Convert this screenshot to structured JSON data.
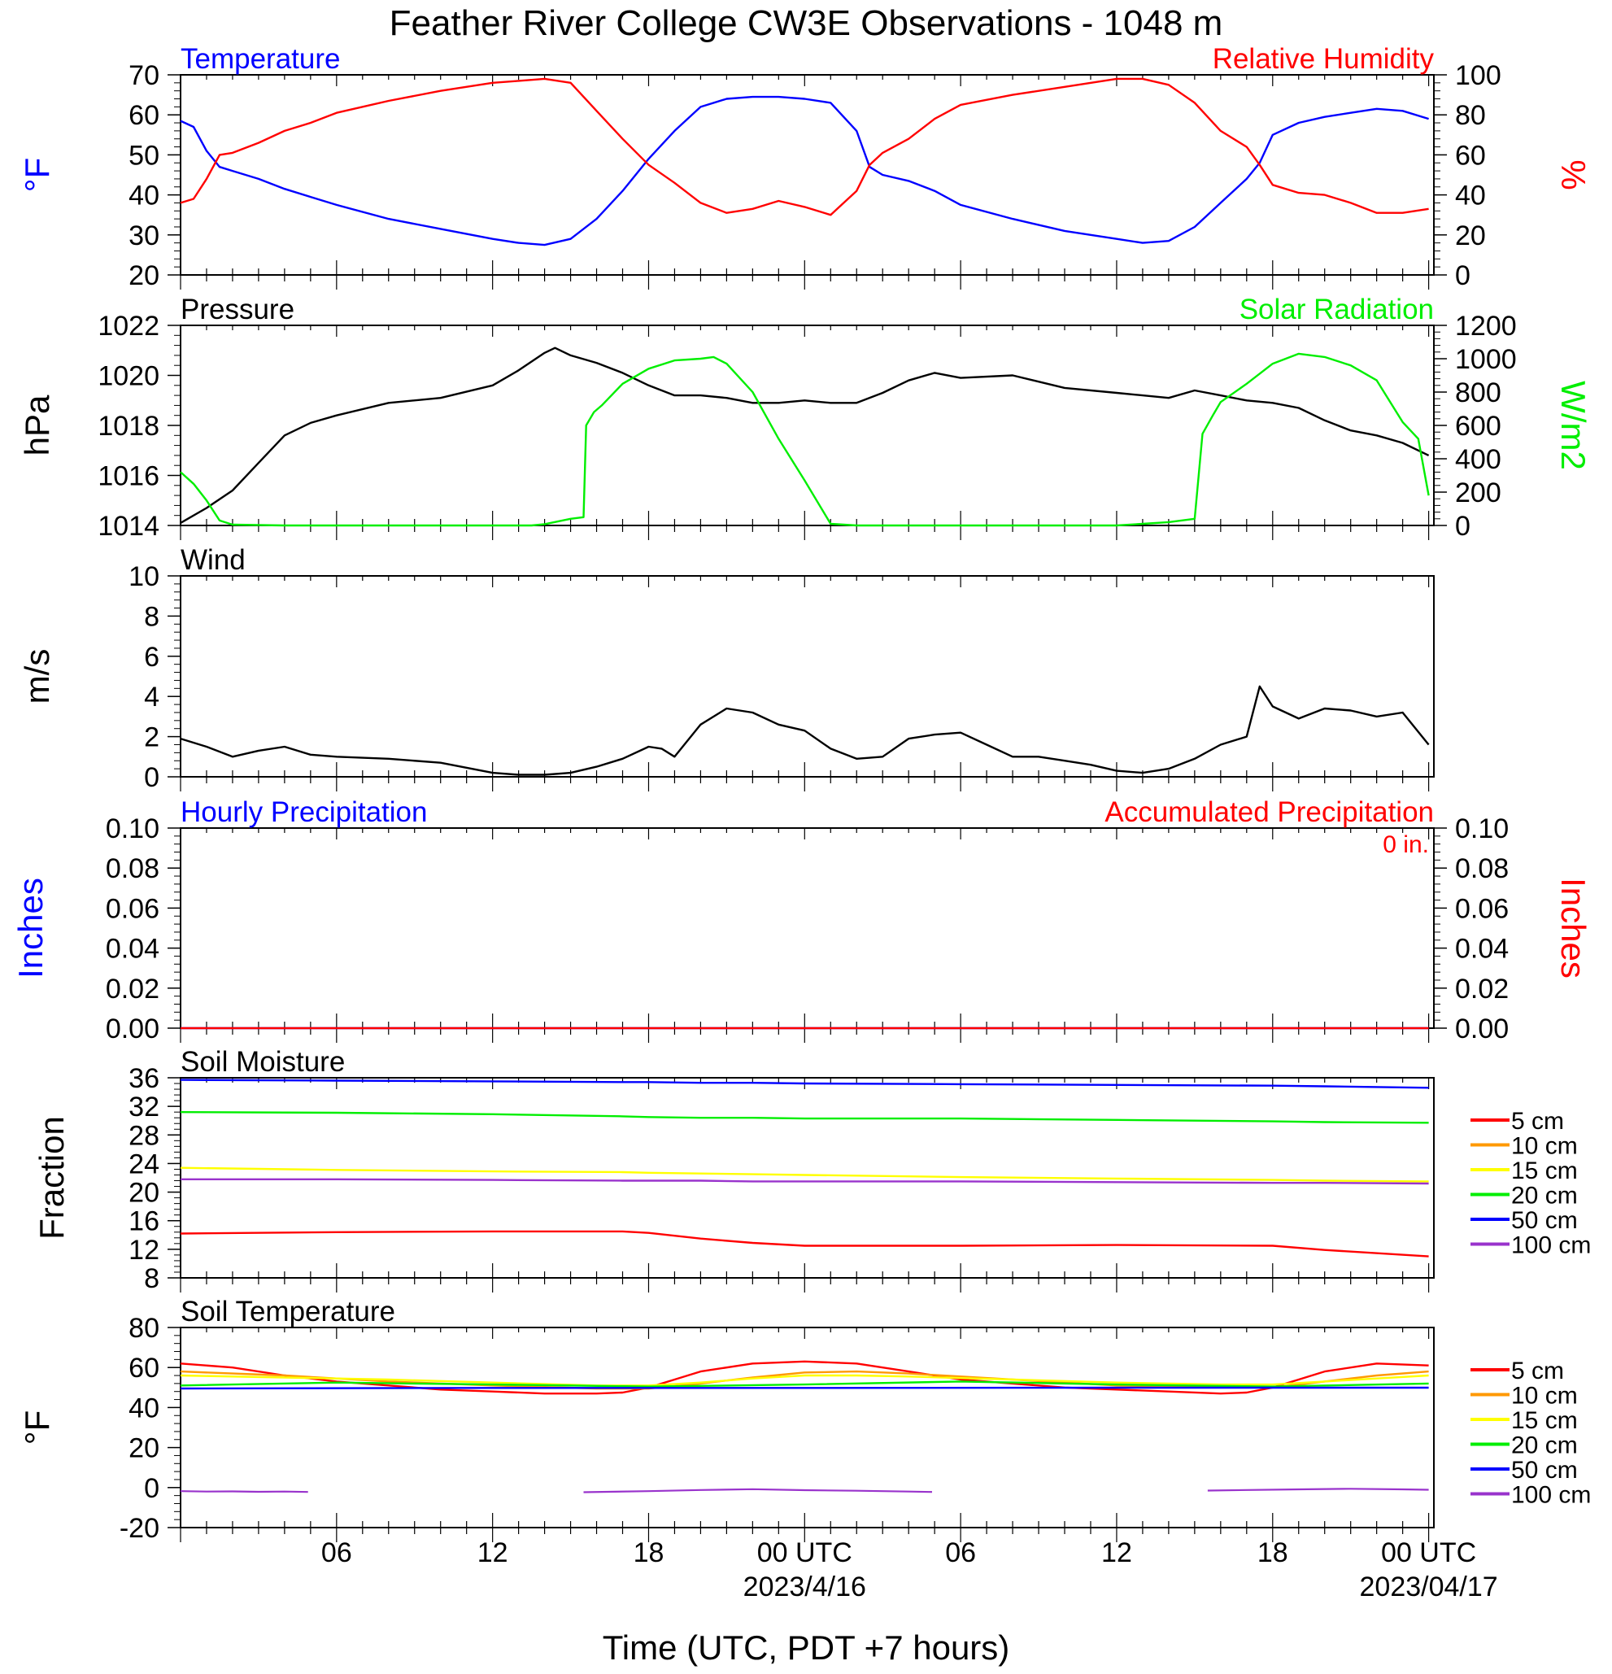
{
  "title": "Feather River College CW3E Observations - 1048 m",
  "xlabel": "Time (UTC, PDT +7 hours)",
  "x_ticks": [
    {
      "h": 6,
      "label": "06",
      "date": ""
    },
    {
      "h": 12,
      "label": "12",
      "date": ""
    },
    {
      "h": 18,
      "label": "18",
      "date": ""
    },
    {
      "h": 24,
      "label": "00 UTC",
      "date": "2023/4/16"
    },
    {
      "h": 30,
      "label": "06",
      "date": ""
    },
    {
      "h": 36,
      "label": "12",
      "date": ""
    },
    {
      "h": 42,
      "label": "18",
      "date": ""
    },
    {
      "h": 48,
      "label": "00 UTC",
      "date": "2023/04/17"
    }
  ],
  "colors": {
    "blue": "#0000ff",
    "red": "#ff0000",
    "green": "#00ee00",
    "black": "#000000",
    "orange": "#ff9900",
    "yellow": "#ffff00",
    "purple": "#9933cc"
  },
  "chart_data": [
    {
      "type": "line",
      "left_title": "Temperature",
      "right_title": "Relative Humidity",
      "ylabel_left": "°F",
      "ylabel_right": "%",
      "ylim_left": [
        20,
        70
      ],
      "ylim_right": [
        0,
        100
      ],
      "yticks_left": [
        20,
        30,
        40,
        50,
        60,
        70
      ],
      "yticks_right": [
        0,
        20,
        40,
        60,
        80,
        100
      ],
      "x_hours": [
        0,
        0.5,
        1,
        1.5,
        2,
        3,
        4,
        5,
        6,
        8,
        10,
        12,
        13,
        14,
        15,
        16,
        17,
        18,
        19,
        20,
        21,
        22,
        23,
        24,
        25,
        26,
        26.5,
        27,
        28,
        29,
        30,
        32,
        34,
        36,
        37,
        38,
        39,
        40,
        41,
        41.5,
        42,
        43,
        44,
        45,
        46,
        47,
        48
      ],
      "series": [
        {
          "name": "Temperature",
          "axis": "left",
          "color": "blue",
          "values": [
            58.5,
            57,
            51,
            47,
            46,
            44,
            41.5,
            39.5,
            37.5,
            34,
            31.5,
            29,
            28,
            27.5,
            29,
            34,
            41,
            49,
            56,
            62,
            64,
            64.5,
            64.5,
            64,
            63,
            56,
            47,
            45,
            43.5,
            41,
            37.5,
            34,
            31,
            29,
            28,
            28.5,
            32,
            38,
            44,
            48,
            55,
            58,
            59.5,
            60.5,
            61.5,
            61,
            59
          ]
        },
        {
          "name": "Relative Humidity",
          "axis": "right",
          "color": "red",
          "values": [
            36,
            38,
            48,
            60,
            61,
            66,
            72,
            76,
            81,
            87,
            92,
            96,
            97,
            98,
            96,
            82,
            68,
            55,
            46,
            36,
            31,
            33,
            37,
            34,
            30,
            42,
            55,
            61,
            68,
            78,
            85,
            90,
            94,
            98,
            98,
            95,
            86,
            72,
            64,
            55,
            45,
            41,
            40,
            36,
            31,
            31,
            33
          ]
        }
      ]
    },
    {
      "type": "line",
      "left_title": "Pressure",
      "right_title": "Solar Radiation",
      "ylabel_left": "hPa",
      "ylabel_right": "W/m2",
      "ylim_left": [
        1014,
        1022
      ],
      "ylim_right": [
        0,
        1200
      ],
      "yticks_left": [
        1014,
        1016,
        1018,
        1020,
        1022
      ],
      "yticks_right": [
        0,
        200,
        400,
        600,
        800,
        1000,
        1200
      ],
      "series": [
        {
          "name": "Pressure",
          "axis": "left",
          "color": "black",
          "x_hours": [
            0,
            1,
            2,
            3,
            4,
            5,
            6,
            8,
            10,
            12,
            13,
            14,
            14.4,
            15,
            16,
            17,
            18,
            19,
            20,
            21,
            22,
            23,
            24,
            25,
            26,
            27,
            28,
            29,
            30,
            32,
            34,
            36,
            37,
            38,
            39,
            40,
            41,
            42,
            43,
            44,
            45,
            46,
            47,
            48
          ],
          "values": [
            1014.1,
            1014.7,
            1015.4,
            1016.5,
            1017.6,
            1018.1,
            1018.4,
            1018.9,
            1019.1,
            1019.6,
            1020.2,
            1020.9,
            1021.1,
            1020.8,
            1020.5,
            1020.1,
            1019.6,
            1019.2,
            1019.2,
            1019.1,
            1018.9,
            1018.9,
            1019.0,
            1018.9,
            1018.9,
            1019.3,
            1019.8,
            1020.1,
            1019.9,
            1020.0,
            1019.5,
            1019.3,
            1019.2,
            1019.1,
            1019.4,
            1019.2,
            1019.0,
            1018.9,
            1018.7,
            1018.2,
            1017.8,
            1017.6,
            1017.3,
            1016.8
          ]
        },
        {
          "name": "Solar Radiation",
          "axis": "right",
          "color": "green",
          "x_hours": [
            0,
            0.5,
            1,
            1.5,
            2,
            4,
            8,
            12,
            13.5,
            14,
            15,
            15.5,
            15.6,
            15.9,
            16.2,
            17,
            18,
            19,
            20,
            20.5,
            21,
            22,
            23,
            24,
            25,
            26,
            26.3,
            26.6,
            28,
            32,
            36,
            37,
            38,
            39,
            39.3,
            39.7,
            40,
            41,
            42,
            43,
            44,
            45,
            46,
            47,
            47.6,
            48
          ],
          "values": [
            320,
            250,
            150,
            30,
            5,
            0,
            0,
            0,
            0,
            8,
            40,
            50,
            600,
            680,
            720,
            850,
            940,
            990,
            1000,
            1010,
            970,
            800,
            520,
            270,
            10,
            0,
            0,
            0,
            0,
            0,
            0,
            10,
            20,
            40,
            550,
            660,
            740,
            850,
            970,
            1030,
            1010,
            960,
            870,
            620,
            520,
            180
          ]
        }
      ]
    },
    {
      "type": "line",
      "left_title": "Wind",
      "ylabel_left": "m/s",
      "ylim_left": [
        0,
        10
      ],
      "yticks_left": [
        0,
        2,
        4,
        6,
        8,
        10
      ],
      "series": [
        {
          "name": "Wind",
          "axis": "left",
          "color": "black",
          "x_hours": [
            0,
            1,
            2,
            3,
            4,
            5,
            6,
            8,
            10,
            12,
            13,
            14,
            15,
            16,
            17,
            18,
            18.5,
            19,
            20,
            21,
            22,
            23,
            24,
            25,
            26,
            27,
            28,
            29,
            30,
            31,
            32,
            33,
            34,
            35,
            36,
            37,
            38,
            39,
            40,
            41,
            41.5,
            42,
            43,
            44,
            45,
            46,
            47,
            48
          ],
          "values": [
            1.9,
            1.5,
            1.0,
            1.3,
            1.5,
            1.1,
            1.0,
            0.9,
            0.7,
            0.2,
            0.1,
            0.1,
            0.2,
            0.5,
            0.9,
            1.5,
            1.4,
            1.0,
            2.6,
            3.4,
            3.2,
            2.6,
            2.3,
            1.4,
            0.9,
            1.0,
            1.9,
            2.1,
            2.2,
            1.6,
            1.0,
            1.0,
            0.8,
            0.6,
            0.3,
            0.2,
            0.4,
            0.9,
            1.6,
            2.0,
            4.5,
            3.5,
            2.9,
            3.4,
            3.3,
            3.0,
            3.2,
            1.6
          ]
        }
      ]
    },
    {
      "type": "line",
      "left_title": "Hourly Precipitation",
      "right_title": "Accumulated Precipitation",
      "ylabel_left": "Inches",
      "ylabel_right": "Inches",
      "ylim_left": [
        0,
        0.1
      ],
      "ylim_right": [
        0,
        0.1
      ],
      "yticks_left": [
        "0.00",
        "0.02",
        "0.04",
        "0.06",
        "0.08",
        "0.10"
      ],
      "yticks_right": [
        "0.00",
        "0.02",
        "0.04",
        "0.06",
        "0.08",
        "0.10"
      ],
      "annotation": "0 in.",
      "series": [
        {
          "name": "Hourly Precipitation",
          "axis": "left",
          "color": "blue",
          "x_hours": [
            0,
            48
          ],
          "values": [
            0,
            0
          ]
        },
        {
          "name": "Accumulated Precipitation",
          "axis": "right",
          "color": "red",
          "x_hours": [
            0,
            48
          ],
          "values": [
            0,
            0
          ]
        }
      ]
    },
    {
      "type": "line",
      "left_title": "Soil Moisture",
      "ylabel_left": "Fraction",
      "ylim_left": [
        8,
        36
      ],
      "yticks_left": [
        8,
        12,
        16,
        20,
        24,
        28,
        32,
        36
      ],
      "legend": [
        "5 cm",
        "10 cm",
        "15 cm",
        "20 cm",
        "50 cm",
        "100 cm"
      ],
      "legend_colors": [
        "red",
        "orange",
        "yellow",
        "green",
        "blue",
        "purple"
      ],
      "x_hours": [
        0,
        6,
        12,
        17,
        18,
        20,
        22,
        24,
        30,
        36,
        42,
        44,
        48
      ],
      "series": [
        {
          "name": "5 cm",
          "color": "red",
          "values": [
            14.2,
            14.4,
            14.5,
            14.5,
            14.3,
            13.5,
            12.9,
            12.5,
            12.5,
            12.6,
            12.5,
            11.9,
            11.0
          ]
        },
        {
          "name": "15 cm",
          "color": "yellow",
          "values": [
            23.4,
            23.1,
            22.9,
            22.8,
            22.7,
            22.6,
            22.5,
            22.4,
            22.1,
            21.9,
            21.7,
            21.6,
            21.5
          ]
        },
        {
          "name": "20 cm",
          "color": "green",
          "values": [
            31.2,
            31.1,
            30.9,
            30.6,
            30.5,
            30.4,
            30.4,
            30.3,
            30.3,
            30.1,
            29.9,
            29.8,
            29.7
          ]
        },
        {
          "name": "50 cm",
          "color": "blue",
          "values": [
            35.7,
            35.6,
            35.5,
            35.4,
            35.4,
            35.3,
            35.3,
            35.2,
            35.1,
            35.0,
            34.9,
            34.8,
            34.6
          ]
        },
        {
          "name": "100 cm",
          "color": "purple",
          "values": [
            21.8,
            21.8,
            21.7,
            21.6,
            21.6,
            21.6,
            21.5,
            21.5,
            21.5,
            21.4,
            21.3,
            21.3,
            21.2
          ]
        }
      ]
    },
    {
      "type": "line",
      "left_title": "Soil Temperature",
      "ylabel_left": "°F",
      "ylim_left": [
        -20,
        80
      ],
      "yticks_left": [
        -20,
        0,
        20,
        40,
        60,
        80
      ],
      "legend": [
        "5 cm",
        "10 cm",
        "15 cm",
        "20 cm",
        "50 cm",
        "100 cm"
      ],
      "legend_colors": [
        "red",
        "orange",
        "yellow",
        "green",
        "blue",
        "purple"
      ],
      "series": [
        {
          "name": "5 cm",
          "color": "red",
          "x_hours": [
            0,
            2,
            4,
            6,
            8,
            10,
            12,
            14,
            16,
            17,
            18,
            19,
            20,
            22,
            24,
            26,
            28,
            30,
            32,
            34,
            36,
            38,
            40,
            41,
            42,
            43,
            44,
            46,
            48
          ],
          "values": [
            62,
            60,
            56,
            53,
            51,
            49,
            48,
            47,
            47,
            47.5,
            50,
            54,
            58,
            62,
            63,
            62,
            58,
            54,
            52,
            50,
            49,
            48,
            47,
            47.5,
            50,
            54,
            58,
            62,
            61
          ]
        },
        {
          "name": "10 cm",
          "color": "orange",
          "x_hours": [
            0,
            4,
            8,
            12,
            16,
            18,
            20,
            22,
            24,
            26,
            28,
            32,
            36,
            40,
            42,
            44,
            46,
            48
          ],
          "values": [
            58,
            56,
            53,
            51,
            49.5,
            49.5,
            52,
            55,
            57.5,
            58,
            57,
            54,
            51,
            50,
            50,
            53,
            56,
            58
          ]
        },
        {
          "name": "15 cm",
          "color": "yellow",
          "x_hours": [
            0,
            4,
            8,
            12,
            16,
            18,
            20,
            22,
            24,
            26,
            28,
            32,
            36,
            40,
            42,
            44,
            46,
            48
          ],
          "values": [
            56,
            55,
            54,
            52.5,
            51,
            51,
            52.5,
            54.5,
            56,
            56,
            55.5,
            54,
            52.5,
            51.5,
            51.5,
            53,
            54.5,
            56
          ]
        },
        {
          "name": "20 cm",
          "color": "green",
          "x_hours": [
            0,
            6,
            12,
            18,
            24,
            30,
            36,
            42,
            48
          ],
          "values": [
            51,
            52.5,
            51.5,
            50.5,
            51.5,
            53,
            51.5,
            50.5,
            52
          ]
        },
        {
          "name": "50 cm",
          "color": "blue",
          "x_hours": [
            0,
            12,
            24,
            36,
            48
          ],
          "values": [
            49.5,
            49.8,
            49.8,
            49.9,
            49.9
          ]
        },
        {
          "name": "100 cm",
          "color": "purple",
          "segments": [
            {
              "x_hours": [
                0,
                1,
                2,
                3,
                4,
                4.9
              ],
              "values": [
                -1.8,
                -2,
                -1.9,
                -2.1,
                -2,
                -2.2
              ]
            },
            {
              "x_hours": [
                15.5,
                18,
                20,
                22,
                24,
                26,
                28,
                28.9
              ],
              "values": [
                -2.3,
                -1.8,
                -1.2,
                -0.8,
                -1.3,
                -1.6,
                -2,
                -2.2
              ]
            },
            {
              "x_hours": [
                39.5,
                41,
                43,
                45,
                47,
                48
              ],
              "values": [
                -1.5,
                -1.2,
                -0.9,
                -0.6,
                -0.9,
                -1.1
              ]
            }
          ]
        }
      ]
    }
  ]
}
